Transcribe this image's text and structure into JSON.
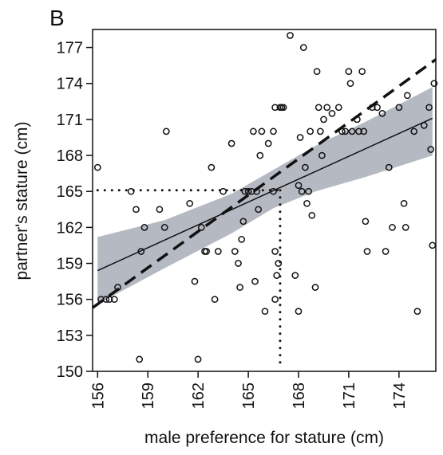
{
  "panel_label": "B",
  "chart_data": {
    "type": "scatter",
    "title": "",
    "xlabel": "male preference for stature (cm)",
    "ylabel": "partner's stature (cm)",
    "xlim": [
      155.7,
      176.2
    ],
    "ylim": [
      150,
      178.5
    ],
    "x_ticks": [
      156,
      159,
      162,
      165,
      168,
      171,
      174
    ],
    "y_ticks": [
      150,
      153,
      156,
      159,
      162,
      165,
      168,
      171,
      174,
      177
    ],
    "grid": false,
    "legend": "none",
    "colors": {
      "points": "#111111",
      "fit_line": "#111111",
      "band": "#b4b9c2",
      "dashed": "#111111",
      "reference": "#111111"
    },
    "points": [
      [
        156.0,
        167.0
      ],
      [
        156.2,
        156.0
      ],
      [
        156.5,
        156.0
      ],
      [
        156.7,
        156.0
      ],
      [
        157.0,
        156.0
      ],
      [
        157.2,
        157.0
      ],
      [
        158.0,
        165.0
      ],
      [
        158.3,
        163.5
      ],
      [
        158.5,
        151.0
      ],
      [
        158.6,
        160.0
      ],
      [
        158.8,
        162.0
      ],
      [
        159.7,
        163.5
      ],
      [
        160.0,
        162.0
      ],
      [
        160.1,
        170.0
      ],
      [
        161.5,
        164.0
      ],
      [
        161.8,
        157.5
      ],
      [
        162.0,
        151.0
      ],
      [
        162.2,
        162.0
      ],
      [
        162.4,
        160.0
      ],
      [
        162.5,
        160.0
      ],
      [
        162.8,
        167.0
      ],
      [
        163.0,
        156.0
      ],
      [
        163.2,
        160.0
      ],
      [
        163.5,
        165.0
      ],
      [
        164.0,
        169.0
      ],
      [
        164.2,
        160.0
      ],
      [
        164.4,
        159.0
      ],
      [
        164.5,
        157.0
      ],
      [
        164.6,
        161.0
      ],
      [
        164.7,
        162.5
      ],
      [
        164.8,
        165.0
      ],
      [
        165.0,
        165.0
      ],
      [
        165.2,
        165.0
      ],
      [
        165.3,
        170.0
      ],
      [
        165.4,
        157.5
      ],
      [
        165.5,
        165.0
      ],
      [
        165.6,
        163.5
      ],
      [
        165.7,
        168.0
      ],
      [
        165.8,
        170.0
      ],
      [
        166.0,
        155.0
      ],
      [
        166.2,
        169.0
      ],
      [
        166.5,
        165.0
      ],
      [
        166.5,
        170.0
      ],
      [
        166.6,
        172.0
      ],
      [
        166.6,
        160.0
      ],
      [
        166.6,
        156.0
      ],
      [
        166.7,
        158.0
      ],
      [
        166.8,
        159.0
      ],
      [
        166.9,
        172.0
      ],
      [
        167.0,
        172.0
      ],
      [
        167.1,
        172.0
      ],
      [
        167.5,
        178.0
      ],
      [
        167.8,
        158.0
      ],
      [
        168.0,
        155.0
      ],
      [
        168.0,
        165.5
      ],
      [
        168.1,
        169.5
      ],
      [
        168.2,
        165.0
      ],
      [
        168.3,
        177.0
      ],
      [
        168.4,
        167.0
      ],
      [
        168.5,
        164.0
      ],
      [
        168.6,
        165.0
      ],
      [
        168.7,
        170.0
      ],
      [
        168.8,
        163.0
      ],
      [
        169.0,
        157.0
      ],
      [
        169.1,
        175.0
      ],
      [
        169.2,
        172.0
      ],
      [
        169.3,
        170.0
      ],
      [
        169.4,
        168.0
      ],
      [
        169.5,
        171.0
      ],
      [
        169.7,
        172.0
      ],
      [
        170.0,
        171.5
      ],
      [
        170.4,
        172.0
      ],
      [
        170.6,
        170.0
      ],
      [
        170.8,
        170.0
      ],
      [
        171.0,
        175.0
      ],
      [
        171.1,
        174.0
      ],
      [
        171.2,
        170.0
      ],
      [
        171.5,
        171.0
      ],
      [
        171.6,
        170.0
      ],
      [
        171.8,
        175.0
      ],
      [
        171.9,
        170.0
      ],
      [
        172.0,
        162.5
      ],
      [
        172.1,
        160.0
      ],
      [
        172.4,
        172.0
      ],
      [
        172.7,
        172.0
      ],
      [
        173.0,
        171.5
      ],
      [
        173.2,
        160.0
      ],
      [
        173.4,
        167.0
      ],
      [
        173.6,
        162.0
      ],
      [
        174.0,
        172.0
      ],
      [
        174.3,
        164.0
      ],
      [
        174.4,
        162.0
      ],
      [
        174.5,
        173.0
      ],
      [
        174.9,
        170.0
      ],
      [
        175.1,
        155.0
      ],
      [
        175.5,
        170.5
      ],
      [
        175.8,
        172.0
      ],
      [
        175.9,
        168.5
      ],
      [
        176.0,
        160.5
      ],
      [
        176.1,
        174.0
      ]
    ],
    "fit_line": {
      "x": [
        156.0,
        176.0
      ],
      "y": [
        158.4,
        171.1
      ]
    },
    "confidence_band": {
      "x": [
        156.0,
        160.0,
        164.0,
        166.5,
        169.0,
        172.0,
        176.0
      ],
      "lower": [
        155.6,
        158.6,
        161.5,
        163.6,
        165.0,
        166.2,
        168.0
      ],
      "upper": [
        161.2,
        162.6,
        164.8,
        166.8,
        168.8,
        170.8,
        173.7
      ]
    },
    "dashed_line": {
      "x": [
        155.7,
        176.2
      ],
      "y": [
        155.3,
        176.0
      ]
    },
    "reference_lines": {
      "h_y": 165.1,
      "h_x_range": [
        156.0,
        166.9
      ],
      "v_x": 166.9,
      "v_y_range": [
        150.2,
        165.1
      ]
    }
  }
}
